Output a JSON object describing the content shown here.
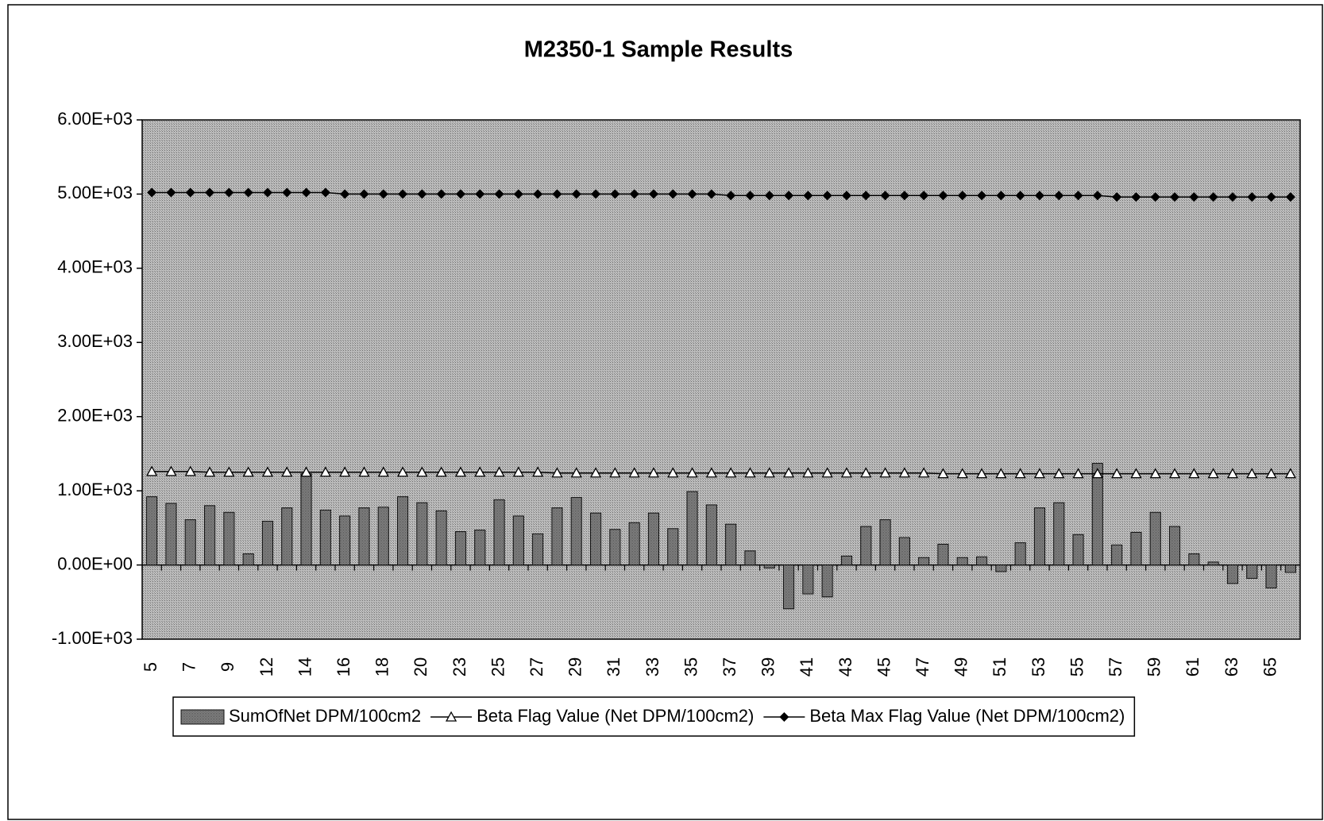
{
  "chart_data": {
    "type": "bar",
    "title": "M2350-1 Sample Results",
    "categories": [
      "5",
      null,
      "7",
      null,
      "9",
      null,
      "12",
      null,
      "14",
      null,
      "16",
      null,
      "18",
      null,
      "20",
      null,
      "23",
      null,
      "25",
      null,
      "27",
      null,
      "29",
      null,
      "31",
      null,
      "33",
      null,
      "35",
      null,
      "37",
      null,
      "39",
      null,
      "41",
      null,
      "43",
      null,
      "45",
      null,
      "47",
      null,
      "49",
      null,
      "51",
      null,
      "53",
      null,
      "55",
      null,
      "57",
      null,
      "59",
      null,
      "61",
      null,
      "63",
      null,
      "65",
      null
    ],
    "series": [
      {
        "name": "SumOfNet DPM/100cm2",
        "type": "bar",
        "color": "#8c8c8c",
        "values": [
          920,
          830,
          610,
          800,
          710,
          150,
          590,
          770,
          1230,
          740,
          660,
          770,
          780,
          920,
          840,
          730,
          450,
          470,
          880,
          660,
          420,
          770,
          910,
          700,
          480,
          570,
          700,
          490,
          990,
          810,
          550,
          190,
          -40,
          -590,
          -390,
          -430,
          120,
          520,
          610,
          370,
          100,
          280,
          100,
          110,
          -90,
          300,
          770,
          840,
          410,
          1370,
          270,
          440,
          710,
          520,
          150,
          40,
          -250,
          -180,
          -310,
          -100
        ]
      },
      {
        "name": "Beta Flag Value (Net DPM/100cm2)",
        "type": "line",
        "marker": "triangle",
        "color": "#000000",
        "values": [
          1260,
          1260,
          1260,
          1250,
          1250,
          1250,
          1250,
          1250,
          1250,
          1250,
          1250,
          1250,
          1250,
          1250,
          1250,
          1250,
          1250,
          1250,
          1250,
          1250,
          1250,
          1240,
          1240,
          1240,
          1240,
          1240,
          1240,
          1240,
          1240,
          1240,
          1240,
          1240,
          1240,
          1240,
          1240,
          1240,
          1240,
          1240,
          1240,
          1240,
          1240,
          1230,
          1230,
          1230,
          1230,
          1230,
          1230,
          1230,
          1230,
          1230,
          1230,
          1230,
          1230,
          1230,
          1230,
          1230,
          1230,
          1230,
          1230,
          1230
        ]
      },
      {
        "name": "Beta Max Flag Value (Net DPM/100cm2)",
        "type": "line",
        "marker": "diamond",
        "color": "#000000",
        "values": [
          5020,
          5020,
          5020,
          5020,
          5020,
          5020,
          5020,
          5020,
          5020,
          5020,
          5000,
          5000,
          5000,
          5000,
          5000,
          5000,
          5000,
          5000,
          5000,
          5000,
          5000,
          5000,
          5000,
          5000,
          5000,
          5000,
          5000,
          5000,
          5000,
          5000,
          4980,
          4980,
          4980,
          4980,
          4980,
          4980,
          4980,
          4980,
          4980,
          4980,
          4980,
          4980,
          4980,
          4980,
          4980,
          4980,
          4980,
          4980,
          4980,
          4980,
          4960,
          4960,
          4960,
          4960,
          4960,
          4960,
          4960,
          4960,
          4960,
          4960
        ]
      }
    ],
    "ylim": [
      -1000,
      6000
    ],
    "yticks": [
      {
        "value": -1000,
        "label": "-1.00E+03"
      },
      {
        "value": 0,
        "label": "0.00E+00"
      },
      {
        "value": 1000,
        "label": "1.00E+03"
      },
      {
        "value": 2000,
        "label": "2.00E+03"
      },
      {
        "value": 3000,
        "label": "3.00E+03"
      },
      {
        "value": 4000,
        "label": "4.00E+03"
      },
      {
        "value": 5000,
        "label": "5.00E+03"
      },
      {
        "value": 6000,
        "label": "6.00E+03"
      }
    ],
    "legend": "bottom"
  }
}
